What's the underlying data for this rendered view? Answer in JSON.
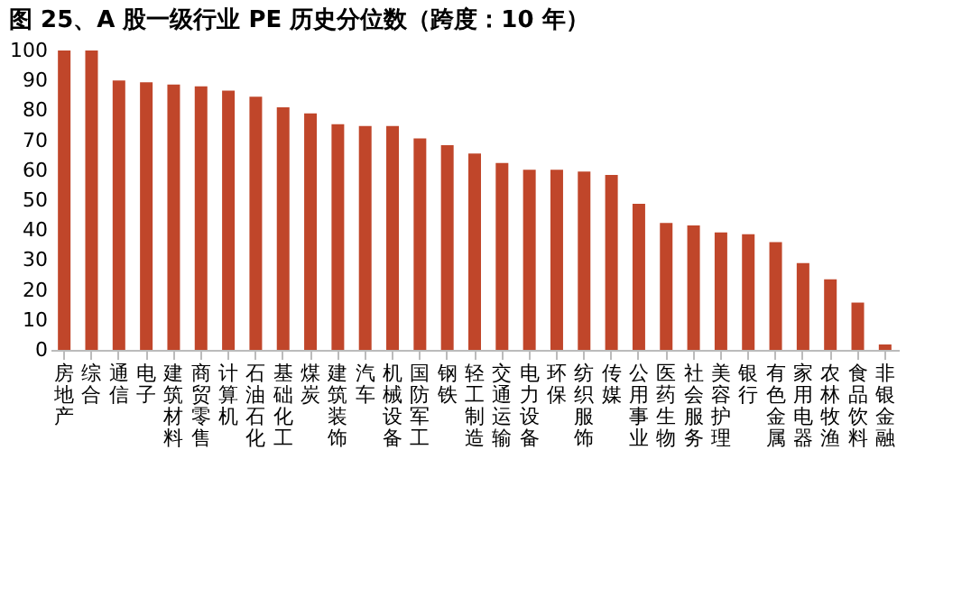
{
  "chart_data": {
    "type": "bar",
    "title": "图 25、A 股一级行业 PE 历史分位数（跨度：10 年）",
    "categories": [
      "房地产",
      "综合",
      "通信",
      "电子",
      "建筑材料",
      "商贸零售",
      "计算机",
      "石油石化",
      "基础化工",
      "煤炭",
      "建筑装饰",
      "汽车",
      "机械设备",
      "国防军工",
      "钢铁",
      "轻工制造",
      "交通运输",
      "电力设备",
      "环保",
      "纺织服饰",
      "传媒",
      "公用事业",
      "医药生物",
      "社会服务",
      "美容护理",
      "银行",
      "有色金属",
      "家用电器",
      "农林牧渔",
      "食品饮料",
      "非银金融"
    ],
    "values": [
      100,
      100,
      90,
      89.4,
      88.6,
      88,
      86.6,
      84.6,
      81,
      79,
      75.4,
      74.8,
      74.8,
      70.6,
      68.4,
      65.6,
      62.4,
      60.2,
      60.2,
      59.6,
      58.4,
      48.8,
      42.4,
      41.6,
      39.2,
      38.6,
      36,
      29,
      23.6,
      15.8,
      1.8
    ],
    "color": "#c0462a",
    "ylim": [
      0,
      100
    ],
    "yticks": [
      0,
      10,
      20,
      30,
      40,
      50,
      60,
      70,
      80,
      90,
      100
    ],
    "grid": false
  }
}
